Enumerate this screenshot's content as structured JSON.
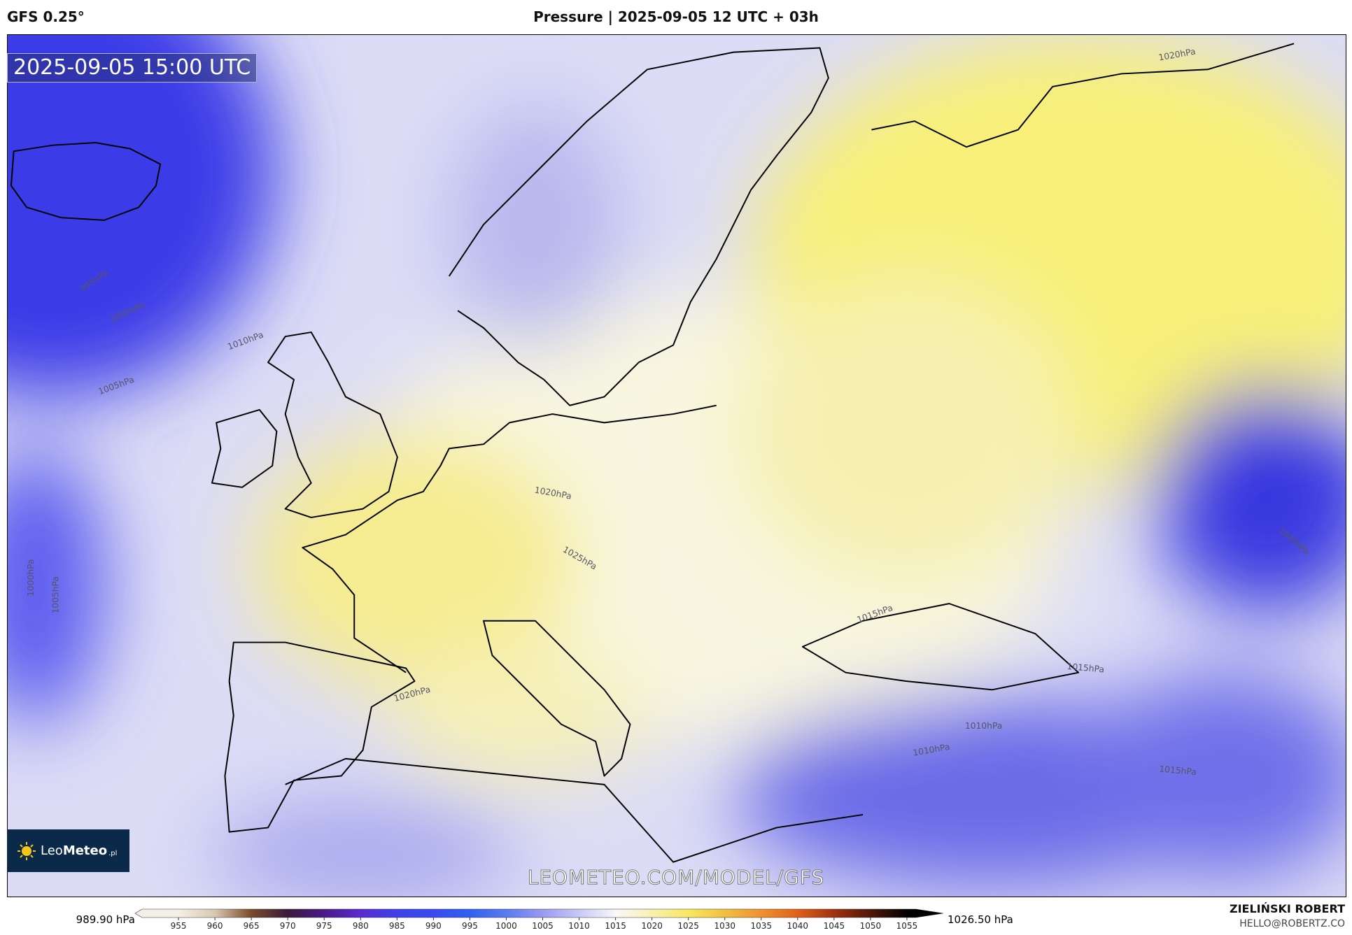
{
  "header": {
    "model": "GFS 0.25°",
    "title": "Pressure | 2025-09-05 12 UTC + 03h"
  },
  "map": {
    "timestamp": "2025-09-05 15:00 UTC",
    "watermark": "LEOMETEO.COM/MODEL/GFS",
    "contour_labels": [
      "995hPa",
      "1000hPa",
      "1010hPa",
      "1005hPa",
      "1020hPa",
      "1025hPa",
      "1020hPa",
      "1015hPa",
      "1010hPa",
      "1010hPa",
      "1020hPa",
      "1015hPa",
      "1015hPa",
      "1005hPa",
      "1000hPa",
      "1005hPa"
    ]
  },
  "logo": {
    "light": "Leo",
    "bold": "Meteo",
    "suffix": ".pl"
  },
  "colorbar": {
    "min_label": "989.90 hPa",
    "max_label": "1026.50 hPa",
    "range": [
      950,
      1060
    ],
    "ticks": [
      955,
      960,
      965,
      970,
      975,
      980,
      985,
      990,
      995,
      1000,
      1005,
      1010,
      1015,
      1020,
      1025,
      1030,
      1035,
      1040,
      1045,
      1050,
      1055
    ],
    "colors": [
      "#f4efe6",
      "#d8c8b0",
      "#7a4a2a",
      "#3a1a3a",
      "#4a1a8a",
      "#5a2ad0",
      "#4040e8",
      "#3a4af0",
      "#3060f0",
      "#5a7af0",
      "#9a9af0",
      "#c8c8f5",
      "#f8f8fa",
      "#f8f0b0",
      "#f8e860",
      "#f0c040",
      "#f09030",
      "#e06018",
      "#a03010",
      "#501808",
      "#000000"
    ]
  },
  "author": {
    "name": "ZIELIŃSKI ROBERT",
    "email": "HELLO@ROBERTZ.CO"
  }
}
